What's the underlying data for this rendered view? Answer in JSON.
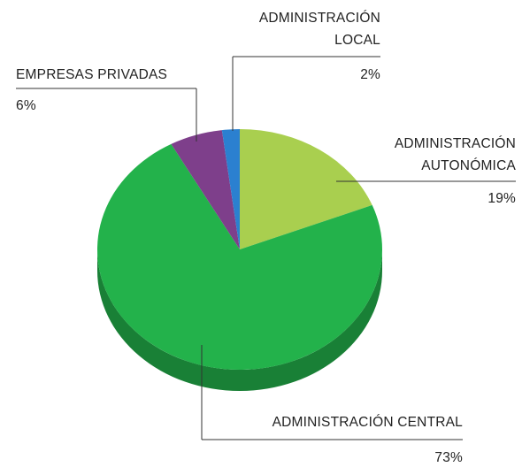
{
  "chart_data": {
    "type": "pie",
    "categories": [
      "ADMINISTRACIÓN AUTONÓMICA",
      "ADMINISTRACIÓN CENTRAL",
      "EMPRESAS PRIVADAS",
      "ADMINISTRACIÓN LOCAL"
    ],
    "values": [
      19,
      73,
      6,
      2
    ],
    "value_labels": [
      "19%",
      "73%",
      "6%",
      "2%"
    ],
    "colors": [
      "#a9cf4f",
      "#23b24b",
      "#7e3f8b",
      "#2b80d0"
    ]
  }
}
